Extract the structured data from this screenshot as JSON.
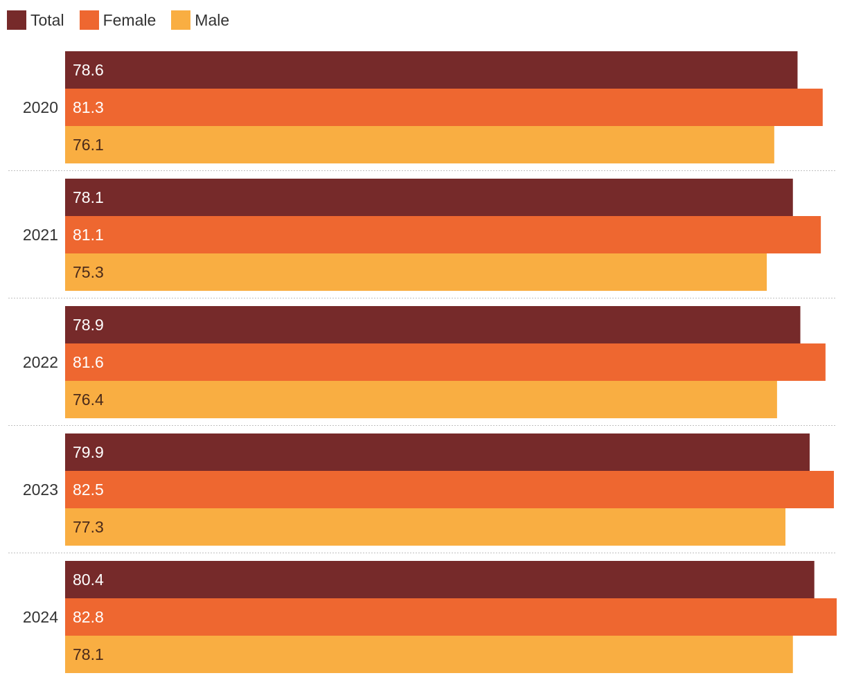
{
  "colors": {
    "total": "#762a2a",
    "female": "#ee6730",
    "male": "#f9ae42",
    "label_dark": "#4a2a1a",
    "label_light": "#ffffff",
    "separator": "#bfbfbf",
    "category_text": "#333333"
  },
  "legend": [
    {
      "key": "total",
      "label": "Total"
    },
    {
      "key": "female",
      "label": "Female"
    },
    {
      "key": "male",
      "label": "Male"
    }
  ],
  "chart_data": {
    "type": "bar",
    "orientation": "horizontal",
    "categories": [
      "2020",
      "2021",
      "2022",
      "2023",
      "2024"
    ],
    "series": [
      {
        "name": "Total",
        "key": "total",
        "values": [
          78.6,
          78.1,
          78.9,
          79.9,
          80.4
        ]
      },
      {
        "name": "Female",
        "key": "female",
        "values": [
          81.3,
          81.1,
          81.6,
          82.5,
          82.8
        ]
      },
      {
        "name": "Male",
        "key": "male",
        "values": [
          76.1,
          75.3,
          76.4,
          77.3,
          78.1
        ]
      }
    ],
    "xlim": [
      0,
      82.8
    ],
    "legend_position": "top-left",
    "grid": false,
    "data_labels": true,
    "title": "",
    "xlabel": "",
    "ylabel": ""
  }
}
